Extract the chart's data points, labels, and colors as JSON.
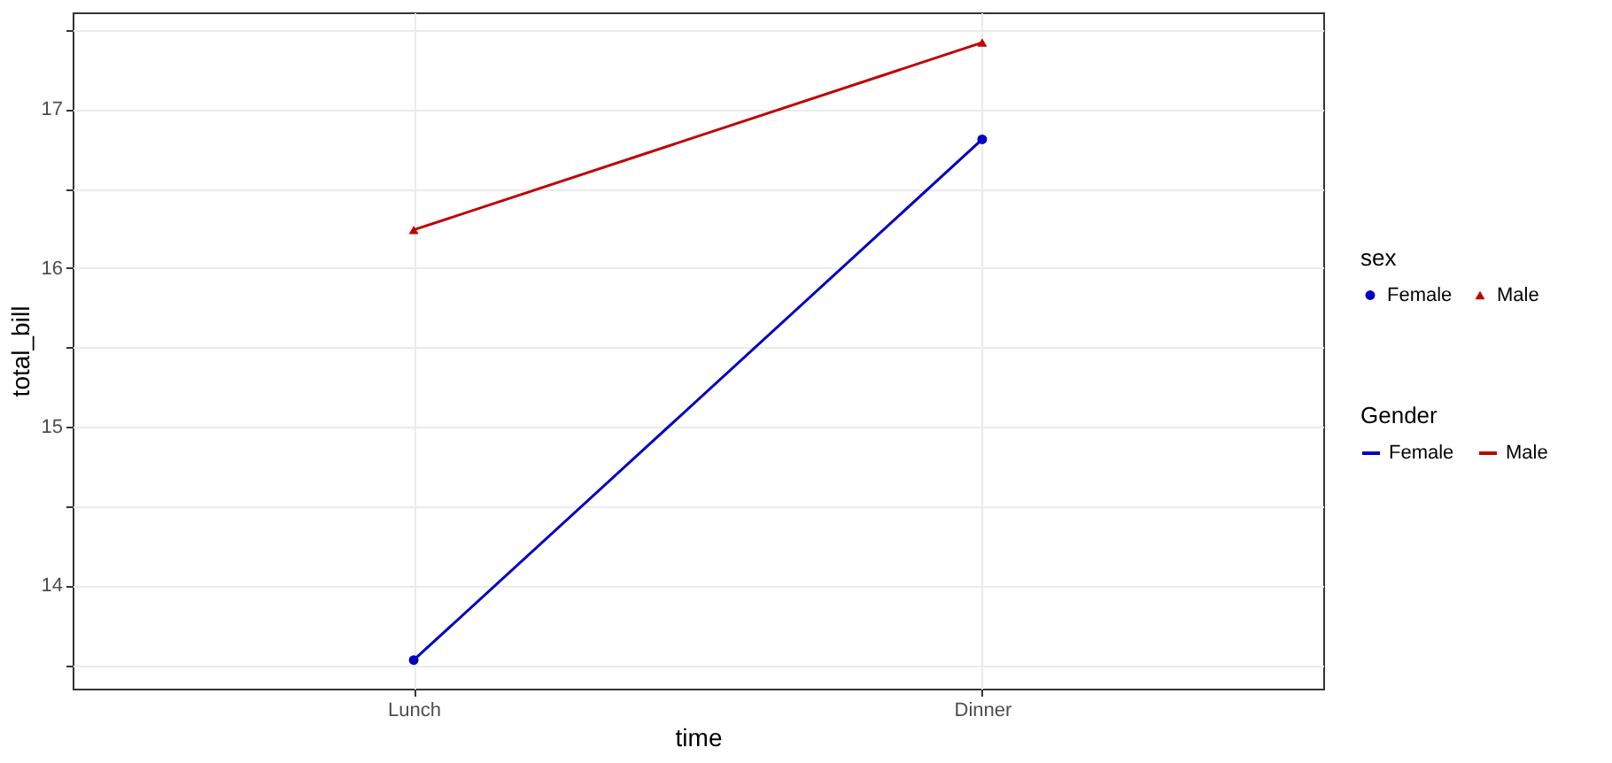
{
  "chart_data": {
    "type": "line",
    "xlabel": "time",
    "ylabel": "total_bill",
    "legend_title": [
      "sex",
      "Gender"
    ],
    "categories": [
      "Lunch",
      "Dinner"
    ],
    "series": [
      {
        "name": "Female",
        "color": "#0000c0",
        "marker": "circle",
        "values": [
          13.53,
          16.81
        ]
      },
      {
        "name": "Male",
        "color": "#c00000",
        "marker": "triangle",
        "values": [
          16.24,
          17.42
        ]
      }
    ],
    "ylim": [
      13.35,
      17.61
    ],
    "yticks": [
      {
        "value": 13.5,
        "label": null
      },
      14,
      {
        "value": 14.5,
        "label": null
      },
      15,
      {
        "value": 15.5,
        "label": null
      },
      16,
      {
        "value": 16.5,
        "label": null
      },
      17,
      {
        "value": 17.5,
        "label": null
      }
    ],
    "grid": true,
    "legend": "right",
    "line_style": "solid"
  }
}
